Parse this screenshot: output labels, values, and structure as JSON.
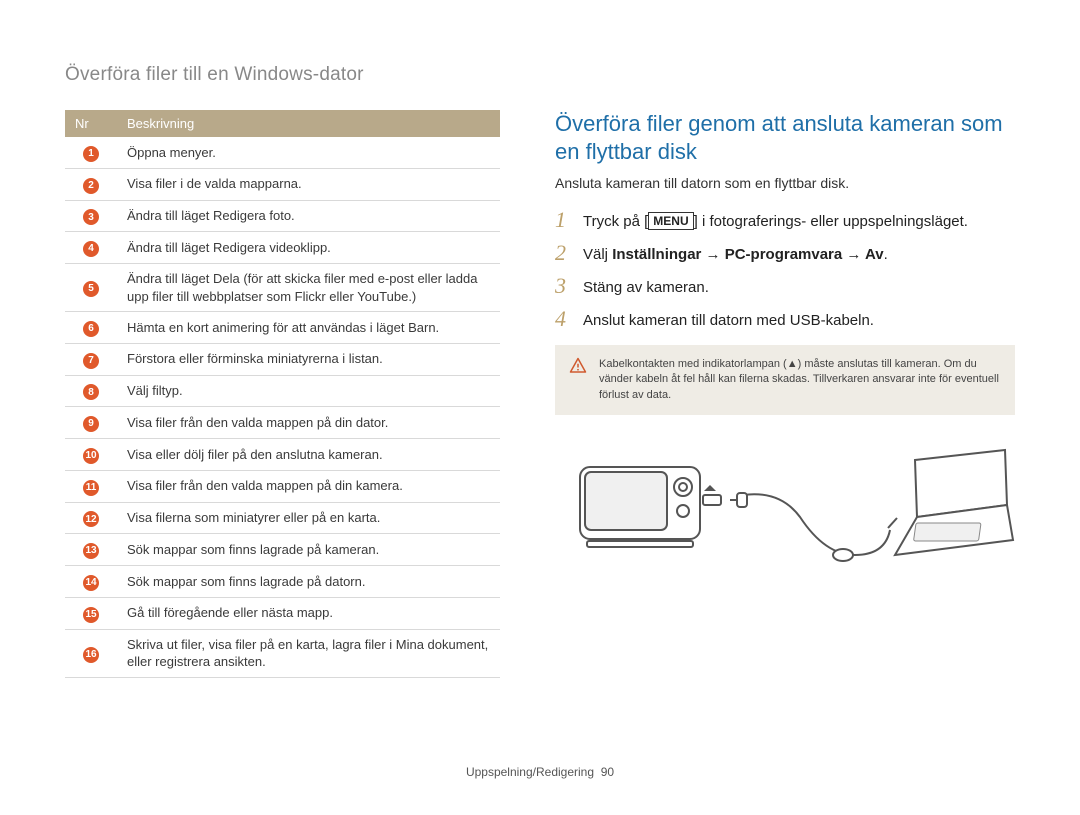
{
  "pageTitle": "Överföra filer till en Windows-dator",
  "table": {
    "headers": {
      "num": "Nr",
      "desc": "Beskrivning"
    },
    "rows": [
      "Öppna menyer.",
      "Visa filer i de valda mapparna.",
      "Ändra till läget Redigera foto.",
      "Ändra till läget Redigera videoklipp.",
      "Ändra till läget Dela (för att skicka filer med e-post eller ladda upp filer till webbplatser som Flickr eller YouTube.)",
      "Hämta en kort animering för att användas i läget Barn.",
      "Förstora eller förminska miniatyrerna i listan.",
      "Välj filtyp.",
      "Visa filer från den valda mappen på din dator.",
      "Visa eller dölj filer på den anslutna kameran.",
      "Visa filer från den valda mappen på din kamera.",
      "Visa filerna som miniatyrer eller på en karta.",
      "Sök mappar som finns lagrade på kameran.",
      "Sök mappar som finns lagrade på datorn.",
      "Gå till föregående eller nästa mapp.",
      "Skriva ut filer, visa filer på en karta, lagra filer i Mina dokument, eller registrera ansikten."
    ]
  },
  "section": {
    "heading": "Överföra filer genom att ansluta kameran som en flyttbar disk",
    "sub": "Ansluta kameran till datorn som en flyttbar disk.",
    "steps": [
      {
        "pre": "Tryck på [",
        "tag": "MENU",
        "post": "] i fotograferings- eller uppspelningsläget."
      },
      {
        "plainPre": "Välj ",
        "bold": "Inställningar → PC-programvara → Av",
        "plainPost": "."
      },
      {
        "text": "Stäng av kameran."
      },
      {
        "text": "Anslut kameran till datorn med USB-kabeln."
      }
    ],
    "warning": "Kabelkontakten med indikatorlampan (▲) måste anslutas till kameran. Om du vänder kabeln åt fel håll kan filerna skadas. Tillverkaren ansvarar inte för eventuell förlust av data."
  },
  "footer": {
    "section": "Uppspelning/Redigering",
    "page": "90"
  },
  "colors": {
    "accent_orange": "#e0592b",
    "heading_blue": "#1f6fa8",
    "table_header_bg": "#b8a98a",
    "step_num": "#bca06a",
    "warn_bg": "#efece5",
    "warn_icon": "#d05a2e"
  }
}
